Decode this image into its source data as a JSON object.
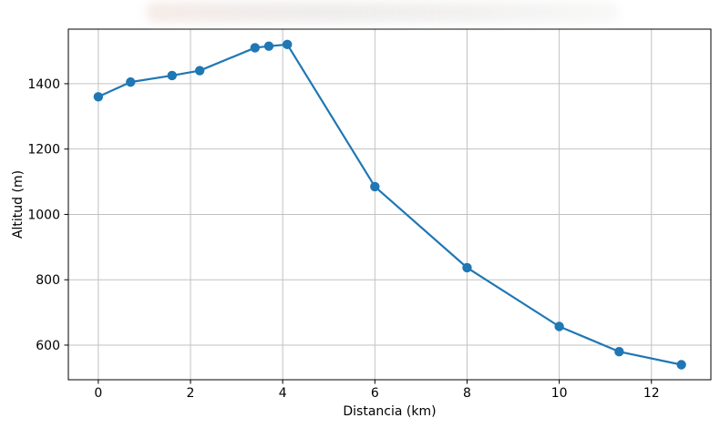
{
  "chart_data": {
    "type": "line",
    "title": "",
    "xlabel": "Distancia (km)",
    "ylabel": "Altitud (m)",
    "x": [
      0,
      0.7,
      1.6,
      2.2,
      3.4,
      3.7,
      4.1,
      6,
      8,
      10,
      11.3,
      12.65
    ],
    "y": [
      1360,
      1405,
      1425,
      1440,
      1510,
      1515,
      1520,
      1085,
      837,
      657,
      580,
      540
    ],
    "xlim": [
      -0.65,
      13.29
    ],
    "ylim": [
      494,
      1567
    ],
    "xticks": [
      0,
      2,
      4,
      6,
      8,
      10,
      12
    ],
    "yticks": [
      600,
      800,
      1000,
      1200,
      1400
    ],
    "grid": true,
    "legend": "none",
    "line_color": "#1f77b4",
    "marker": "circle",
    "grid_color": "#c2c2c2",
    "frame_color": "#000000"
  }
}
